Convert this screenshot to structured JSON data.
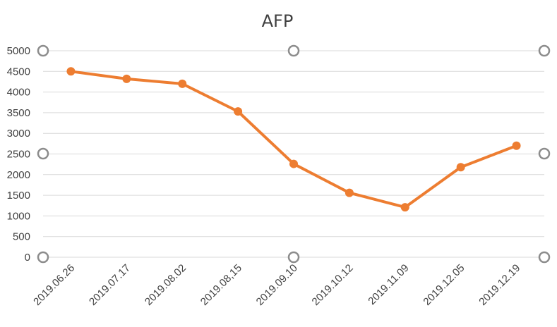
{
  "chart_data": {
    "type": "line",
    "title": "AFP",
    "xlabel": "",
    "ylabel": "",
    "categories": [
      "2019.06.26",
      "2019.07.17",
      "2019.08.02",
      "2019.08,15",
      "2019.09.10",
      "2019.10.12",
      "2019.11.09",
      "2019.12.05",
      "2019.12.19"
    ],
    "series": [
      {
        "values": [
          4500,
          4320,
          4200,
          3530,
          2260,
          1560,
          1210,
          2180,
          2700
        ]
      }
    ],
    "ylim": [
      0,
      5000
    ],
    "yticks": [
      0,
      500,
      1000,
      1500,
      2000,
      2500,
      3000,
      3500,
      4000,
      4500,
      5000
    ],
    "ytick_labels": [
      "0",
      "500",
      "1000",
      "1500",
      "2000",
      "2500",
      "3000",
      "3500",
      "4000",
      "4500",
      "5000"
    ],
    "grid": "horizontal",
    "legend": "none",
    "colors": {
      "series": "#ed7d31",
      "grid": "#d9d9d9",
      "text": "#404040",
      "selection_handle": "#8c8c8c"
    }
  }
}
